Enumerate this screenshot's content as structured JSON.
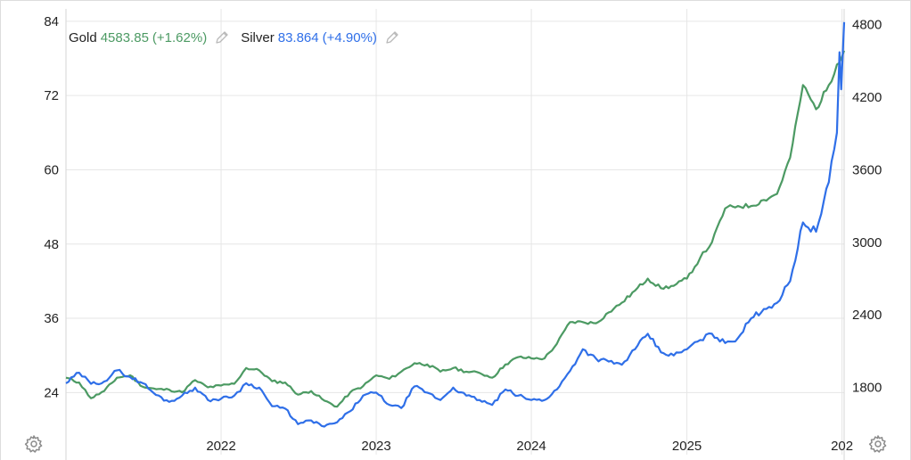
{
  "legend": {
    "gold": {
      "name": "Gold",
      "value": "4583.85",
      "change": "(+1.62%)",
      "color": "#4c9a63"
    },
    "silver": {
      "name": "Silver",
      "value": "83.864",
      "change": "(+4.90%)",
      "color": "#2f6fe8"
    },
    "edit_icon": "pencil-icon"
  },
  "settings_icon": "gear-icon",
  "chart_data": {
    "type": "line",
    "left_axis": {
      "series": "Silver",
      "ylim": [
        18,
        86
      ],
      "ticks": [
        "24",
        "36",
        "48",
        "60",
        "72",
        "84"
      ]
    },
    "right_axis": {
      "series": "Gold",
      "ylim": [
        1450,
        4930
      ],
      "ticks": [
        "1800",
        "2400",
        "3000",
        "3600",
        "4200",
        "4800"
      ]
    },
    "x_axis": {
      "xlim": [
        "2021-01-01",
        "2026-01-06"
      ],
      "ticks": [
        "2022",
        "2023",
        "2024",
        "2025",
        "202"
      ]
    },
    "grid": true,
    "series": [
      {
        "name": "Gold",
        "axis": "right",
        "color": "#4c9a63",
        "points": [
          [
            "2021-01-01",
            1880
          ],
          [
            "2021-02-01",
            1840
          ],
          [
            "2021-03-01",
            1710
          ],
          [
            "2021-04-01",
            1770
          ],
          [
            "2021-05-01",
            1880
          ],
          [
            "2021-06-01",
            1900
          ],
          [
            "2021-07-01",
            1805
          ],
          [
            "2021-08-01",
            1785
          ],
          [
            "2021-09-01",
            1780
          ],
          [
            "2021-10-01",
            1760
          ],
          [
            "2021-11-01",
            1860
          ],
          [
            "2021-12-01",
            1800
          ],
          [
            "2022-01-01",
            1815
          ],
          [
            "2022-02-01",
            1830
          ],
          [
            "2022-03-01",
            1960
          ],
          [
            "2022-04-01",
            1940
          ],
          [
            "2022-05-01",
            1850
          ],
          [
            "2022-06-01",
            1840
          ],
          [
            "2022-07-01",
            1740
          ],
          [
            "2022-08-01",
            1770
          ],
          [
            "2022-09-01",
            1690
          ],
          [
            "2022-10-01",
            1640
          ],
          [
            "2022-11-01",
            1760
          ],
          [
            "2022-12-01",
            1810
          ],
          [
            "2023-01-01",
            1900
          ],
          [
            "2023-02-01",
            1870
          ],
          [
            "2023-03-01",
            1930
          ],
          [
            "2023-04-01",
            2000
          ],
          [
            "2023-05-01",
            1990
          ],
          [
            "2023-06-01",
            1930
          ],
          [
            "2023-07-01",
            1960
          ],
          [
            "2023-08-01",
            1930
          ],
          [
            "2023-09-01",
            1920
          ],
          [
            "2023-10-01",
            1880
          ],
          [
            "2023-11-01",
            1990
          ],
          [
            "2023-12-01",
            2050
          ],
          [
            "2024-01-01",
            2040
          ],
          [
            "2024-02-01",
            2040
          ],
          [
            "2024-03-01",
            2160
          ],
          [
            "2024-04-01",
            2340
          ],
          [
            "2024-05-01",
            2340
          ],
          [
            "2024-06-01",
            2330
          ],
          [
            "2024-07-01",
            2420
          ],
          [
            "2024-08-01",
            2500
          ],
          [
            "2024-09-01",
            2600
          ],
          [
            "2024-10-01",
            2700
          ],
          [
            "2024-11-01",
            2620
          ],
          [
            "2024-12-01",
            2640
          ],
          [
            "2025-01-01",
            2700
          ],
          [
            "2025-02-01",
            2870
          ],
          [
            "2025-03-01",
            3000
          ],
          [
            "2025-04-01",
            3280
          ],
          [
            "2025-05-01",
            3300
          ],
          [
            "2025-06-01",
            3300
          ],
          [
            "2025-07-01",
            3350
          ],
          [
            "2025-08-01",
            3400
          ],
          [
            "2025-09-01",
            3700
          ],
          [
            "2025-10-01",
            4300
          ],
          [
            "2025-11-01",
            4100
          ],
          [
            "2025-12-01",
            4300
          ],
          [
            "2025-12-20",
            4470
          ],
          [
            "2026-01-06",
            4584
          ]
        ]
      },
      {
        "name": "Silver",
        "axis": "left",
        "color": "#2f6fe8",
        "points": [
          [
            "2021-01-01",
            25.5
          ],
          [
            "2021-02-01",
            27.2
          ],
          [
            "2021-03-01",
            25.4
          ],
          [
            "2021-04-01",
            25.8
          ],
          [
            "2021-05-01",
            27.6
          ],
          [
            "2021-06-01",
            26.5
          ],
          [
            "2021-07-01",
            25.5
          ],
          [
            "2021-08-01",
            23.6
          ],
          [
            "2021-09-01",
            22.5
          ],
          [
            "2021-10-01",
            23.5
          ],
          [
            "2021-11-01",
            24.8
          ],
          [
            "2021-12-01",
            22.8
          ],
          [
            "2022-01-01",
            23.0
          ],
          [
            "2022-02-01",
            23.5
          ],
          [
            "2022-03-01",
            25.5
          ],
          [
            "2022-04-01",
            24.8
          ],
          [
            "2022-05-01",
            21.8
          ],
          [
            "2022-06-01",
            21.4
          ],
          [
            "2022-07-01",
            18.9
          ],
          [
            "2022-08-01",
            19.5
          ],
          [
            "2022-09-01",
            18.5
          ],
          [
            "2022-10-01",
            19.2
          ],
          [
            "2022-11-01",
            21.0
          ],
          [
            "2022-12-01",
            23.5
          ],
          [
            "2023-01-01",
            24.0
          ],
          [
            "2023-02-01",
            22.0
          ],
          [
            "2023-03-01",
            21.5
          ],
          [
            "2023-04-01",
            25.0
          ],
          [
            "2023-05-01",
            24.0
          ],
          [
            "2023-06-01",
            22.8
          ],
          [
            "2023-07-01",
            24.8
          ],
          [
            "2023-08-01",
            23.5
          ],
          [
            "2023-09-01",
            22.8
          ],
          [
            "2023-10-01",
            22.0
          ],
          [
            "2023-11-01",
            24.5
          ],
          [
            "2023-12-01",
            23.5
          ],
          [
            "2024-01-01",
            22.8
          ],
          [
            "2024-02-01",
            22.8
          ],
          [
            "2024-03-01",
            24.5
          ],
          [
            "2024-04-01",
            27.5
          ],
          [
            "2024-05-01",
            31.0
          ],
          [
            "2024-06-01",
            29.5
          ],
          [
            "2024-07-01",
            29.0
          ],
          [
            "2024-08-01",
            28.5
          ],
          [
            "2024-09-01",
            31.0
          ],
          [
            "2024-10-01",
            33.5
          ],
          [
            "2024-11-01",
            30.5
          ],
          [
            "2024-12-01",
            30.0
          ],
          [
            "2025-01-01",
            31.0
          ],
          [
            "2025-02-01",
            32.5
          ],
          [
            "2025-03-01",
            33.5
          ],
          [
            "2025-04-01",
            32.0
          ],
          [
            "2025-05-01",
            32.8
          ],
          [
            "2025-06-01",
            36.0
          ],
          [
            "2025-07-01",
            37.5
          ],
          [
            "2025-08-01",
            38.5
          ],
          [
            "2025-09-01",
            42.0
          ],
          [
            "2025-10-01",
            51.5
          ],
          [
            "2025-11-01",
            50.0
          ],
          [
            "2025-12-01",
            58.0
          ],
          [
            "2025-12-20",
            66.0
          ],
          [
            "2025-12-26",
            79.0
          ],
          [
            "2025-12-30",
            73.0
          ],
          [
            "2026-01-06",
            83.864
          ]
        ]
      }
    ]
  }
}
